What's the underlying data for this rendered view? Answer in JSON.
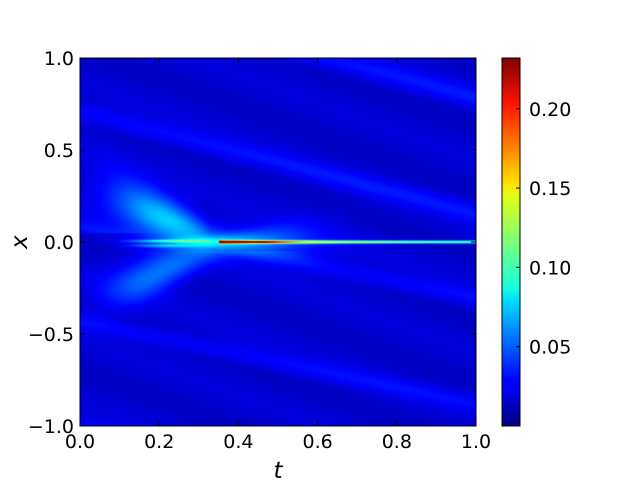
{
  "chart_data": {
    "type": "heatmap",
    "title": "",
    "xlabel": "t",
    "ylabel": "x",
    "xlim": [
      0.0,
      1.0
    ],
    "ylim": [
      -1.0,
      1.0
    ],
    "x_ticks": [
      "0.0",
      "0.2",
      "0.4",
      "0.6",
      "0.8",
      "1.0"
    ],
    "y_ticks": [
      "1.0",
      "0.5",
      "0.0",
      "−0.5",
      "−1.0"
    ],
    "x_tick_values": [
      0.0,
      0.2,
      0.4,
      0.6,
      0.8,
      1.0
    ],
    "y_tick_values": [
      1.0,
      0.5,
      0.0,
      -0.5,
      -1.0
    ],
    "grid": false,
    "colormap": "jet",
    "colorbar": {
      "range": [
        0.0,
        0.232
      ],
      "ticks": [
        "0.05",
        "0.10",
        "0.15",
        "0.20"
      ],
      "tick_values": [
        0.05,
        0.1,
        0.15,
        0.2
      ]
    },
    "features": {
      "front_line": {
        "x": 0.0,
        "t_start": 0.35,
        "t_end": 1.0,
        "peak": 0.232
      },
      "fan_apex": {
        "t": 0.33,
        "x": 0.0
      },
      "background_level": 0.015
    }
  }
}
